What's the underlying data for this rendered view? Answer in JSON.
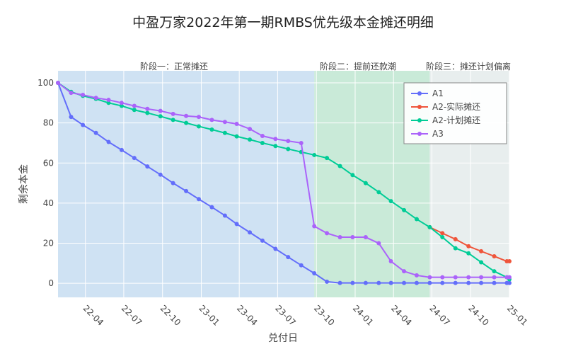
{
  "chart_data": {
    "type": "line",
    "title": "中盈万家2022年第一期RMBS优先级本金摊还明细",
    "xlabel": "兑付日",
    "ylabel": "剩余本金",
    "x_tick_labels": [
      "22-04",
      "22-07",
      "22-10",
      "23-01",
      "23-04",
      "23-07",
      "23-10",
      "24-01",
      "24-04",
      "24-07",
      "24-10",
      "25-01"
    ],
    "x_tick_dates": [
      "2022-04-01",
      "2022-07-01",
      "2022-10-01",
      "2023-01-01",
      "2023-04-01",
      "2023-07-01",
      "2023-10-01",
      "2024-01-01",
      "2024-04-01",
      "2024-07-01",
      "2024-10-01",
      "2025-01-01"
    ],
    "xlim": [
      "2022-01-26",
      "2025-01-01"
    ],
    "ylim": [
      -7,
      106
    ],
    "y_ticks": [
      0,
      20,
      40,
      60,
      80,
      100
    ],
    "grid": true,
    "legend_position": "top-right",
    "phases": [
      {
        "label": "阶段一：正常摊还",
        "start": "2022-01-26",
        "end": "2023-09-26",
        "color": "#cfe2f3"
      },
      {
        "label": "阶段二：提前还款潮",
        "start": "2023-09-26",
        "end": "2024-06-26",
        "color": "#c9ead8"
      },
      {
        "label": "阶段三：摊还计划偏离",
        "start": "2024-06-26",
        "end": "2025-01-01",
        "color": "#e8eeee"
      }
    ],
    "series": [
      {
        "name": "A1",
        "color": "#636efa",
        "x": [
          "2022-01-26",
          "2022-02-26",
          "2022-03-26",
          "2022-04-26",
          "2022-05-26",
          "2022-06-26",
          "2022-07-26",
          "2022-08-26",
          "2022-09-26",
          "2022-10-26",
          "2022-11-26",
          "2022-12-26",
          "2023-01-26",
          "2023-02-26",
          "2023-03-26",
          "2023-04-26",
          "2023-05-26",
          "2023-06-26",
          "2023-07-26",
          "2023-08-26",
          "2023-09-26",
          "2023-10-26",
          "2023-11-26",
          "2023-12-26",
          "2024-01-26",
          "2024-02-26",
          "2024-03-26",
          "2024-04-26",
          "2024-05-26",
          "2024-06-26",
          "2024-07-26",
          "2024-08-26",
          "2024-09-26",
          "2024-10-26",
          "2024-11-26",
          "2024-12-26",
          "2025-01-01"
        ],
        "y": [
          100,
          83,
          79,
          75,
          70.5,
          66.5,
          62.5,
          58.3,
          54.2,
          50,
          46,
          42,
          38,
          33.8,
          29.6,
          25.4,
          21.3,
          17.2,
          13.1,
          9,
          5,
          0.8,
          0.2,
          0.2,
          0.2,
          0.2,
          0.2,
          0.2,
          0.2,
          0.2,
          0.2,
          0.2,
          0.2,
          0.2,
          0.2,
          0.2,
          0.2
        ]
      },
      {
        "name": "A2-实际摊还",
        "color": "#ef553b",
        "x": [
          "2024-06-26",
          "2024-07-26",
          "2024-08-26",
          "2024-09-26",
          "2024-10-26",
          "2024-11-26",
          "2024-12-26",
          "2025-01-01"
        ],
        "y": [
          28,
          25,
          22,
          18.5,
          16,
          13.5,
          11,
          11
        ]
      },
      {
        "name": "A2-计划摊还",
        "color": "#00cc96",
        "x": [
          "2022-01-26",
          "2022-02-26",
          "2022-03-26",
          "2022-04-26",
          "2022-05-26",
          "2022-06-26",
          "2022-07-26",
          "2022-08-26",
          "2022-09-26",
          "2022-10-26",
          "2022-11-26",
          "2022-12-26",
          "2023-01-26",
          "2023-02-26",
          "2023-03-26",
          "2023-04-26",
          "2023-05-26",
          "2023-06-26",
          "2023-07-26",
          "2023-08-26",
          "2023-09-26",
          "2023-10-26",
          "2023-11-26",
          "2023-12-26",
          "2024-01-26",
          "2024-02-26",
          "2024-03-26",
          "2024-04-26",
          "2024-05-26",
          "2024-06-26",
          "2024-07-26",
          "2024-08-26",
          "2024-09-26",
          "2024-10-26",
          "2024-11-26",
          "2024-12-26",
          "2025-01-01"
        ],
        "y": [
          100,
          95.5,
          93.5,
          92,
          90,
          88.5,
          86.5,
          85,
          83.3,
          81.5,
          80,
          78.3,
          76.7,
          75,
          73.3,
          71.7,
          70,
          68.5,
          67,
          65.5,
          64,
          62.5,
          58.5,
          54,
          50,
          45.5,
          41,
          36.5,
          32,
          28,
          23,
          17.5,
          15,
          10.5,
          6,
          3,
          2
        ]
      },
      {
        "name": "A3",
        "color": "#ab63fa",
        "x": [
          "2022-01-26",
          "2022-02-26",
          "2022-03-26",
          "2022-04-26",
          "2022-05-26",
          "2022-06-26",
          "2022-07-26",
          "2022-08-26",
          "2022-09-26",
          "2022-10-26",
          "2022-11-26",
          "2022-12-26",
          "2023-01-26",
          "2023-02-26",
          "2023-03-26",
          "2023-04-26",
          "2023-05-26",
          "2023-06-26",
          "2023-07-26",
          "2023-08-26",
          "2023-09-26",
          "2023-10-26",
          "2023-11-26",
          "2023-12-26",
          "2024-01-26",
          "2024-02-26",
          "2024-03-26",
          "2024-04-26",
          "2024-05-26",
          "2024-06-26",
          "2024-07-26",
          "2024-08-26",
          "2024-09-26",
          "2024-10-26",
          "2024-11-26",
          "2024-12-26",
          "2025-01-01"
        ],
        "y": [
          100,
          95,
          94,
          92.5,
          91.5,
          90,
          88.5,
          87,
          86,
          84.5,
          83.5,
          83,
          81.5,
          80.5,
          79.5,
          77,
          73.5,
          72,
          71,
          70,
          28.5,
          25,
          23,
          23,
          23,
          20,
          11,
          6,
          4,
          3,
          3,
          3,
          3,
          3,
          3,
          3,
          3
        ]
      }
    ]
  }
}
